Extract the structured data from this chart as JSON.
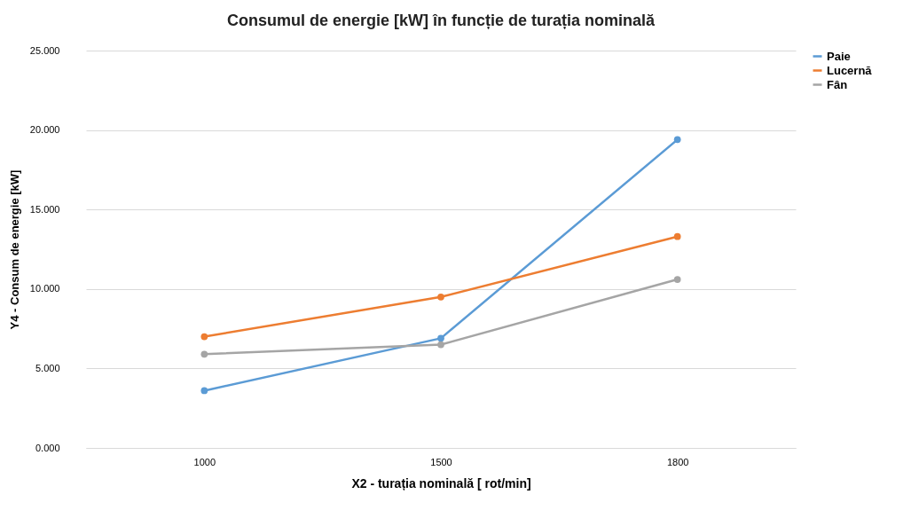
{
  "chart_data": {
    "type": "line",
    "title": "Consumul de energie [kW] în funcție de turația nominală",
    "xlabel": "X2 - turația nominală [ rot/min]",
    "ylabel": "Y4 - Consum de energie [kW]",
    "categories": [
      "1000",
      "1500",
      "1800"
    ],
    "series": [
      {
        "name": "Paie",
        "color": "#5b9bd5",
        "values": [
          3.6,
          6.9,
          19.4
        ]
      },
      {
        "name": "Lucernă",
        "color": "#ed7d31",
        "values": [
          7.0,
          9.5,
          13.3
        ]
      },
      {
        "name": "Fân",
        "color": "#a5a5a5",
        "values": [
          5.9,
          6.5,
          10.6
        ]
      }
    ],
    "ylim": [
      0,
      25
    ],
    "yticks": [
      {
        "value": 0,
        "label": "0.000"
      },
      {
        "value": 5,
        "label": "5.000"
      },
      {
        "value": 10,
        "label": "10.000"
      },
      {
        "value": 15,
        "label": "15.000"
      },
      {
        "value": 20,
        "label": "20.000"
      },
      {
        "value": 25,
        "label": "25.000"
      }
    ],
    "grid": "y",
    "legend": "right",
    "marker": "circle",
    "line_style": "solid"
  }
}
